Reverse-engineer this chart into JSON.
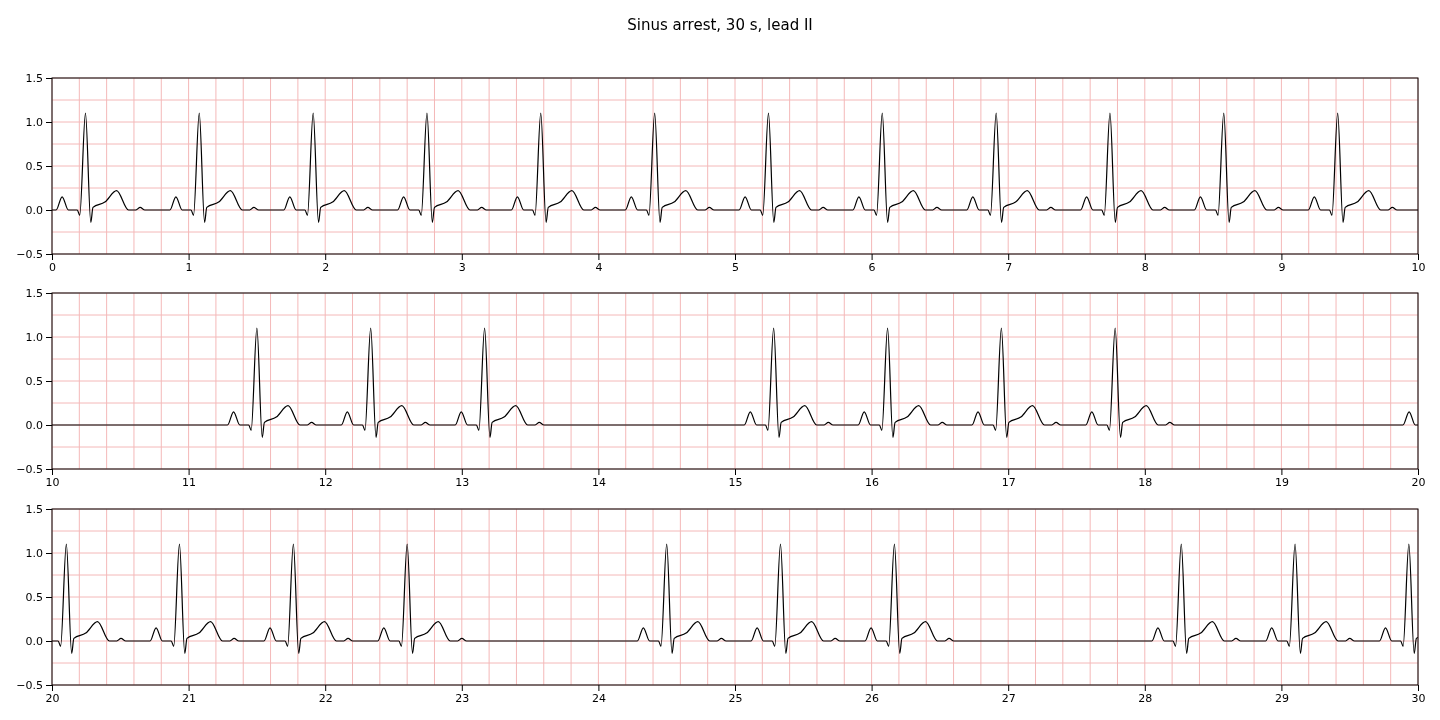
{
  "chart_data": [
    {
      "type": "line",
      "title": "Sinus arrest, 30 s, lead II",
      "xlim": [
        0,
        10
      ],
      "ylim": [
        -0.5,
        1.5
      ],
      "xticks": [
        0,
        1,
        2,
        3,
        4,
        5,
        6,
        7,
        8,
        9,
        10,
        {
          "value": 0.2,
          "label": null
        },
        {
          "value": 0.4,
          "label": null
        },
        {
          "value": 0.6,
          "label": null
        },
        {
          "value": 0.8,
          "label": null
        },
        {
          "value": 1.2,
          "label": null
        },
        {
          "value": 1.4,
          "label": null
        },
        {
          "value": 1.6,
          "label": null
        },
        {
          "value": 1.8,
          "label": null
        },
        {
          "value": 2.2,
          "label": null
        },
        {
          "value": 2.4,
          "label": null
        },
        {
          "value": 2.6,
          "label": null
        },
        {
          "value": 2.8,
          "label": null
        },
        {
          "value": 3.2,
          "label": null
        },
        {
          "value": 3.4,
          "label": null
        },
        {
          "value": 3.6,
          "label": null
        },
        {
          "value": 3.8,
          "label": null
        },
        {
          "value": 4.2,
          "label": null
        },
        {
          "value": 4.4,
          "label": null
        },
        {
          "value": 4.6,
          "label": null
        },
        {
          "value": 4.8,
          "label": null
        },
        {
          "value": 5.2,
          "label": null
        },
        {
          "value": 5.4,
          "label": null
        },
        {
          "value": 5.6,
          "label": null
        },
        {
          "value": 5.8,
          "label": null
        },
        {
          "value": 6.2,
          "label": null
        },
        {
          "value": 6.4,
          "label": null
        },
        {
          "value": 6.6,
          "label": null
        },
        {
          "value": 6.8,
          "label": null
        },
        {
          "value": 7.2,
          "label": null
        },
        {
          "value": 7.4,
          "label": null
        },
        {
          "value": 7.6,
          "label": null
        },
        {
          "value": 7.8,
          "label": null
        },
        {
          "value": 8.2,
          "label": null
        },
        {
          "value": 8.4,
          "label": null
        },
        {
          "value": 8.6,
          "label": null
        },
        {
          "value": 8.8,
          "label": null
        },
        {
          "value": 9.2,
          "label": null
        },
        {
          "value": 9.4,
          "label": null
        },
        {
          "value": 9.6,
          "label": null
        },
        {
          "value": 9.8,
          "label": null
        }
      ],
      "yticks": [
        {
          "value": -0.5,
          "label": "−0.5"
        },
        {
          "value": 0,
          "label": "0.0"
        },
        {
          "value": 0.5,
          "label": "0.5"
        },
        {
          "value": 1,
          "label": "1.0"
        },
        {
          "value": 1.5,
          "label": "1.5"
        },
        {
          "value": -0.25,
          "label": null
        },
        {
          "value": 0.25,
          "label": null
        },
        {
          "value": 0.75,
          "label": null
        },
        {
          "value": 1.25,
          "label": null
        }
      ],
      "grid": true,
      "line_style": "solid",
      "series": [
        {
          "color": "#000000",
          "x": [
            0,
            0.03,
            0.074,
            0.12,
            0.185,
            0.203,
            0.245,
            0.284,
            0.3,
            0.387,
            0.473,
            0.56,
            0.615,
            0.645,
            0.68,
            0.863,
            0.907,
            0.953,
            1.018,
            1.036,
            1.078,
            1.117,
            1.133,
            1.22,
            1.306,
            1.393,
            1.448,
            1.478,
            1.513,
            1.697,
            1.741,
            1.787,
            1.852,
            1.87,
            1.912,
            1.951,
            1.967,
            2.054,
            2.14,
            2.227,
            2.282,
            2.312,
            2.347,
            2.53,
            2.574,
            2.62,
            2.685,
            2.703,
            2.745,
            2.784,
            2.8,
            2.887,
            2.973,
            3.06,
            3.115,
            3.145,
            3.18,
            3.363,
            3.407,
            3.453,
            3.518,
            3.536,
            3.578,
            3.617,
            3.633,
            3.72,
            3.806,
            3.893,
            3.948,
            3.978,
            4.013,
            4.197,
            4.241,
            4.287,
            4.352,
            4.37,
            4.412,
            4.451,
            4.467,
            4.554,
            4.64,
            4.727,
            4.782,
            4.812,
            4.847,
            5.03,
            5.074,
            5.12,
            5.185,
            5.203,
            5.245,
            5.284,
            5.3,
            5.387,
            5.473,
            5.56,
            5.615,
            5.645,
            5.68,
            5.863,
            5.907,
            5.953,
            6.018,
            6.036,
            6.078,
            6.117,
            6.133,
            6.22,
            6.306,
            6.393,
            6.448,
            6.478,
            6.513,
            6.697,
            6.741,
            6.787,
            6.852,
            6.87,
            6.912,
            6.951,
            6.967,
            7.054,
            7.14,
            7.227,
            7.282,
            7.312,
            7.347,
            7.53,
            7.574,
            7.62,
            7.685,
            7.703,
            7.745,
            7.784,
            7.8,
            7.887,
            7.973,
            8.06,
            8.115,
            8.145,
            8.18,
            8.363,
            8.407,
            8.453,
            8.518,
            8.536,
            8.578,
            8.617,
            8.633,
            8.72,
            8.806,
            8.893,
            8.948,
            8.978,
            9.013,
            9.197,
            9.241,
            9.287,
            9.352,
            9.37,
            9.412,
            9.451,
            9.467,
            9.554,
            9.64,
            9.727,
            9.782,
            9.812,
            9.847,
            10
          ],
          "values": [
            0,
            0,
            0.15,
            0,
            0,
            -0.06,
            1.1,
            -0.14,
            0.03,
            0.09,
            0.22,
            0,
            0,
            0.03,
            0,
            0,
            0.15,
            0,
            0,
            -0.06,
            1.1,
            -0.14,
            0.03,
            0.09,
            0.22,
            0,
            0,
            0.03,
            0,
            0,
            0.15,
            0,
            0,
            -0.06,
            1.1,
            -0.14,
            0.03,
            0.09,
            0.22,
            0,
            0,
            0.03,
            0,
            0,
            0.15,
            0,
            0,
            -0.06,
            1.1,
            -0.14,
            0.03,
            0.09,
            0.22,
            0,
            0,
            0.03,
            0,
            0,
            0.15,
            0,
            0,
            -0.06,
            1.1,
            -0.14,
            0.03,
            0.09,
            0.22,
            0,
            0,
            0.03,
            0,
            0,
            0.15,
            0,
            0,
            -0.06,
            1.1,
            -0.14,
            0.03,
            0.09,
            0.22,
            0,
            0,
            0.03,
            0,
            0,
            0.15,
            0,
            0,
            -0.06,
            1.1,
            -0.14,
            0.03,
            0.09,
            0.22,
            0,
            0,
            0.03,
            0,
            0,
            0.15,
            0,
            0,
            -0.06,
            1.1,
            -0.14,
            0.03,
            0.09,
            0.22,
            0,
            0,
            0.03,
            0,
            0,
            0.15,
            0,
            0,
            -0.06,
            1.1,
            -0.14,
            0.03,
            0.09,
            0.22,
            0,
            0,
            0.03,
            0,
            0,
            0.15,
            0,
            0,
            -0.06,
            1.1,
            -0.14,
            0.03,
            0.09,
            0.22,
            0,
            0,
            0.03,
            0,
            0,
            0.15,
            0,
            0,
            -0.06,
            1.1,
            -0.14,
            0.03,
            0.09,
            0.22,
            0,
            0,
            0.03,
            0,
            0,
            0.15,
            0,
            0,
            -0.06,
            1.1,
            -0.14,
            0.03,
            0.09,
            0.22,
            0,
            0,
            0.03,
            0,
            0
          ]
        }
      ]
    },
    {
      "type": "line",
      "xlim": [
        10,
        20
      ],
      "ylim": [
        -0.5,
        1.5
      ],
      "xticks": [
        10,
        11,
        12,
        13,
        14,
        15,
        16,
        17,
        18,
        19,
        20,
        {
          "value": 10.2,
          "label": null
        },
        {
          "value": 10.4,
          "label": null
        },
        {
          "value": 10.6,
          "label": null
        },
        {
          "value": 10.8,
          "label": null
        },
        {
          "value": 11.2,
          "label": null
        },
        {
          "value": 11.4,
          "label": null
        },
        {
          "value": 11.6,
          "label": null
        },
        {
          "value": 11.8,
          "label": null
        },
        {
          "value": 12.2,
          "label": null
        },
        {
          "value": 12.4,
          "label": null
        },
        {
          "value": 12.6,
          "label": null
        },
        {
          "value": 12.8,
          "label": null
        },
        {
          "value": 13.2,
          "label": null
        },
        {
          "value": 13.4,
          "label": null
        },
        {
          "value": 13.6,
          "label": null
        },
        {
          "value": 13.8,
          "label": null
        },
        {
          "value": 14.2,
          "label": null
        },
        {
          "value": 14.4,
          "label": null
        },
        {
          "value": 14.6,
          "label": null
        },
        {
          "value": 14.8,
          "label": null
        },
        {
          "value": 15.2,
          "label": null
        },
        {
          "value": 15.4,
          "label": null
        },
        {
          "value": 15.6,
          "label": null
        },
        {
          "value": 15.8,
          "label": null
        },
        {
          "value": 16.2,
          "label": null
        },
        {
          "value": 16.4,
          "label": null
        },
        {
          "value": 16.6,
          "label": null
        },
        {
          "value": 16.8,
          "label": null
        },
        {
          "value": 17.2,
          "label": null
        },
        {
          "value": 17.4,
          "label": null
        },
        {
          "value": 17.6,
          "label": null
        },
        {
          "value": 17.8,
          "label": null
        },
        {
          "value": 18.2,
          "label": null
        },
        {
          "value": 18.4,
          "label": null
        },
        {
          "value": 18.6,
          "label": null
        },
        {
          "value": 18.8,
          "label": null
        },
        {
          "value": 19.2,
          "label": null
        },
        {
          "value": 19.4,
          "label": null
        },
        {
          "value": 19.6,
          "label": null
        },
        {
          "value": 19.8,
          "label": null
        }
      ],
      "yticks": [
        {
          "value": -0.5,
          "label": "−0.5"
        },
        {
          "value": 0,
          "label": "0.0"
        },
        {
          "value": 0.5,
          "label": "0.5"
        },
        {
          "value": 1,
          "label": "1.0"
        },
        {
          "value": 1.5,
          "label": "1.5"
        },
        {
          "value": -0.25,
          "label": null
        },
        {
          "value": 0.25,
          "label": null
        },
        {
          "value": 0.75,
          "label": null
        },
        {
          "value": 1.25,
          "label": null
        }
      ],
      "grid": true,
      "line_style": "solid",
      "series": [
        {
          "color": "#000000",
          "x": [
            10,
            11.285,
            11.329,
            11.375,
            11.44,
            11.458,
            11.5,
            11.539,
            11.555,
            11.642,
            11.728,
            11.815,
            11.87,
            11.9,
            11.935,
            12.118,
            12.162,
            12.208,
            12.273,
            12.291,
            12.333,
            12.372,
            12.388,
            12.475,
            12.561,
            12.648,
            12.703,
            12.733,
            12.768,
            12.952,
            12.996,
            13.042,
            13.107,
            13.125,
            13.167,
            13.206,
            13.222,
            13.309,
            13.395,
            13.482,
            13.537,
            13.567,
            13.602,
            15.068,
            15.112,
            15.158,
            15.223,
            15.241,
            15.283,
            15.322,
            15.338,
            15.425,
            15.511,
            15.598,
            15.653,
            15.683,
            15.718,
            15.902,
            15.946,
            15.992,
            16.057,
            16.075,
            16.117,
            16.156,
            16.172,
            16.259,
            16.345,
            16.432,
            16.487,
            16.517,
            16.552,
            16.735,
            16.779,
            16.825,
            16.89,
            16.908,
            16.95,
            16.989,
            17.005,
            17.092,
            17.178,
            17.265,
            17.32,
            17.35,
            17.385,
            17.568,
            17.612,
            17.658,
            17.723,
            17.741,
            17.783,
            17.822,
            17.838,
            17.925,
            18.011,
            18.098,
            18.153,
            18.183,
            18.218,
            19.89,
            19.935,
            19.98,
            20
          ],
          "values": [
            0,
            0,
            0.15,
            0,
            0,
            -0.06,
            1.1,
            -0.14,
            0.03,
            0.09,
            0.22,
            0,
            0,
            0.03,
            0,
            0,
            0.15,
            0,
            0,
            -0.06,
            1.1,
            -0.14,
            0.03,
            0.09,
            0.22,
            0,
            0,
            0.03,
            0,
            0,
            0.15,
            0,
            0,
            -0.06,
            1.1,
            -0.14,
            0.03,
            0.09,
            0.22,
            0,
            0,
            0.03,
            0,
            0,
            0.15,
            0,
            0,
            -0.06,
            1.1,
            -0.14,
            0.03,
            0.09,
            0.22,
            0,
            0,
            0.03,
            0,
            0,
            0.15,
            0,
            0,
            -0.06,
            1.1,
            -0.14,
            0.03,
            0.09,
            0.22,
            0,
            0,
            0.03,
            0,
            0,
            0.15,
            0,
            0,
            -0.06,
            1.1,
            -0.14,
            0.03,
            0.09,
            0.22,
            0,
            0,
            0.03,
            0,
            0,
            0.15,
            0,
            0,
            -0.06,
            1.1,
            -0.14,
            0.03,
            0.09,
            0.22,
            0,
            0,
            0.03,
            0,
            0,
            0.15,
            0,
            0
          ]
        }
      ]
    },
    {
      "type": "line",
      "xlim": [
        20,
        30
      ],
      "ylim": [
        -0.5,
        1.5
      ],
      "xticks": [
        20,
        21,
        22,
        23,
        24,
        25,
        26,
        27,
        28,
        29,
        30,
        {
          "value": 20.2,
          "label": null
        },
        {
          "value": 20.4,
          "label": null
        },
        {
          "value": 20.6,
          "label": null
        },
        {
          "value": 20.8,
          "label": null
        },
        {
          "value": 21.2,
          "label": null
        },
        {
          "value": 21.4,
          "label": null
        },
        {
          "value": 21.6,
          "label": null
        },
        {
          "value": 21.8,
          "label": null
        },
        {
          "value": 22.2,
          "label": null
        },
        {
          "value": 22.4,
          "label": null
        },
        {
          "value": 22.6,
          "label": null
        },
        {
          "value": 22.8,
          "label": null
        },
        {
          "value": 23.2,
          "label": null
        },
        {
          "value": 23.4,
          "label": null
        },
        {
          "value": 23.6,
          "label": null
        },
        {
          "value": 23.8,
          "label": null
        },
        {
          "value": 24.2,
          "label": null
        },
        {
          "value": 24.4,
          "label": null
        },
        {
          "value": 24.6,
          "label": null
        },
        {
          "value": 24.8,
          "label": null
        },
        {
          "value": 25.2,
          "label": null
        },
        {
          "value": 25.4,
          "label": null
        },
        {
          "value": 25.6,
          "label": null
        },
        {
          "value": 25.8,
          "label": null
        },
        {
          "value": 26.2,
          "label": null
        },
        {
          "value": 26.4,
          "label": null
        },
        {
          "value": 26.6,
          "label": null
        },
        {
          "value": 26.8,
          "label": null
        },
        {
          "value": 27.2,
          "label": null
        },
        {
          "value": 27.4,
          "label": null
        },
        {
          "value": 27.6,
          "label": null
        },
        {
          "value": 27.8,
          "label": null
        },
        {
          "value": 28.2,
          "label": null
        },
        {
          "value": 28.4,
          "label": null
        },
        {
          "value": 28.6,
          "label": null
        },
        {
          "value": 28.8,
          "label": null
        },
        {
          "value": 29.2,
          "label": null
        },
        {
          "value": 29.4,
          "label": null
        },
        {
          "value": 29.6,
          "label": null
        },
        {
          "value": 29.8,
          "label": null
        }
      ],
      "yticks": [
        {
          "value": -0.5,
          "label": "−0.5"
        },
        {
          "value": 0,
          "label": "0.0"
        },
        {
          "value": 0.5,
          "label": "0.5"
        },
        {
          "value": 1,
          "label": "1.0"
        },
        {
          "value": 1.5,
          "label": "1.5"
        },
        {
          "value": -0.25,
          "label": null
        },
        {
          "value": 0.25,
          "label": null
        },
        {
          "value": 0.75,
          "label": null
        },
        {
          "value": 1.25,
          "label": null
        }
      ],
      "grid": true,
      "line_style": "solid",
      "series": [
        {
          "color": "#000000",
          "x": [
            20,
            20.045,
            20.063,
            20.105,
            20.144,
            20.16,
            20.247,
            20.333,
            20.42,
            20.475,
            20.505,
            20.54,
            20.718,
            20.762,
            20.808,
            20.873,
            20.891,
            20.933,
            20.972,
            20.988,
            21.075,
            21.161,
            21.248,
            21.303,
            21.333,
            21.368,
            21.552,
            21.596,
            21.642,
            21.707,
            21.725,
            21.767,
            21.806,
            21.822,
            21.909,
            21.995,
            22.082,
            22.137,
            22.167,
            22.202,
            22.385,
            22.429,
            22.475,
            22.54,
            22.558,
            22.6,
            22.639,
            22.655,
            22.742,
            22.828,
            22.915,
            22.97,
            23.0,
            23.035,
            24.285,
            24.329,
            24.375,
            24.44,
            24.458,
            24.5,
            24.539,
            24.555,
            24.642,
            24.728,
            24.815,
            24.87,
            24.9,
            24.935,
            25.118,
            25.162,
            25.208,
            25.273,
            25.291,
            25.333,
            25.372,
            25.388,
            25.475,
            25.561,
            25.648,
            25.703,
            25.733,
            25.768,
            25.952,
            25.996,
            26.042,
            26.107,
            26.125,
            26.167,
            26.206,
            26.222,
            26.309,
            26.395,
            26.482,
            26.537,
            26.567,
            26.602,
            28.052,
            28.096,
            28.142,
            28.207,
            28.225,
            28.267,
            28.306,
            28.322,
            28.409,
            28.495,
            28.582,
            28.637,
            28.667,
            28.702,
            28.885,
            28.929,
            28.975,
            29.04,
            29.058,
            29.1,
            29.139,
            29.155,
            29.242,
            29.328,
            29.415,
            29.47,
            29.5,
            29.535,
            29.718,
            29.762,
            29.808,
            29.873,
            29.891,
            29.933,
            29.972,
            29.988,
            30
          ],
          "values": [
            0,
            0,
            -0.06,
            1.1,
            -0.14,
            0.03,
            0.09,
            0.22,
            0,
            0,
            0.03,
            0,
            0,
            0.15,
            0,
            0,
            -0.06,
            1.1,
            -0.14,
            0.03,
            0.09,
            0.22,
            0,
            0,
            0.03,
            0,
            0,
            0.15,
            0,
            0,
            -0.06,
            1.1,
            -0.14,
            0.03,
            0.09,
            0.22,
            0,
            0,
            0.03,
            0,
            0,
            0.15,
            0,
            0,
            -0.06,
            1.1,
            -0.14,
            0.03,
            0.09,
            0.22,
            0,
            0,
            0.03,
            0,
            0,
            0.15,
            0,
            0,
            -0.06,
            1.1,
            -0.14,
            0.03,
            0.09,
            0.22,
            0,
            0,
            0.03,
            0,
            0,
            0.15,
            0,
            0,
            -0.06,
            1.1,
            -0.14,
            0.03,
            0.09,
            0.22,
            0,
            0,
            0.03,
            0,
            0,
            0.15,
            0,
            0,
            -0.06,
            1.1,
            -0.14,
            0.03,
            0.09,
            0.22,
            0,
            0,
            0.03,
            0,
            0,
            0.15,
            0,
            0,
            -0.06,
            1.1,
            -0.14,
            0.03,
            0.09,
            0.22,
            0,
            0,
            0.03,
            0,
            0,
            0.15,
            0,
            0,
            -0.06,
            1.1,
            -0.14,
            0.03,
            0.09,
            0.22,
            0,
            0,
            0.03,
            0,
            0,
            0.15,
            0,
            0,
            -0.06,
            1.1,
            -0.14,
            0.03,
            0.04
          ]
        }
      ]
    }
  ]
}
